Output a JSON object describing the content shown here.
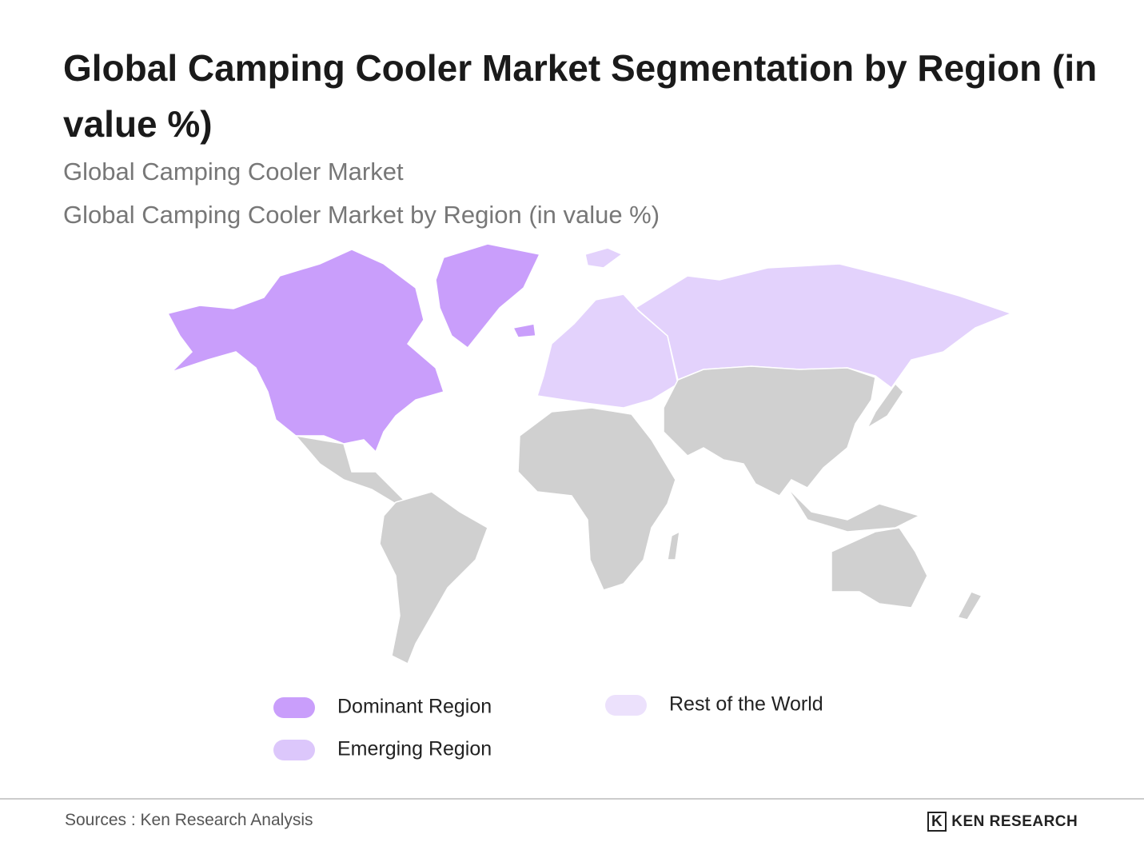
{
  "header": {
    "title": "Global Camping Cooler Market Segmentation by Region (in value %)",
    "subtitles": [
      "Global Camping Cooler Market",
      "Global Camping Cooler Market by Region (in value %)"
    ]
  },
  "legend": [
    {
      "label": "Dominant Region",
      "color": "#c99efb"
    },
    {
      "label": "Emerging Region",
      "color": "#dcc7fb"
    },
    {
      "label": "Rest of the World",
      "color": "#ece1fc"
    }
  ],
  "footer": {
    "source": "Sources : Ken Research Analysis",
    "logo": "KEN RESEARCH"
  }
}
